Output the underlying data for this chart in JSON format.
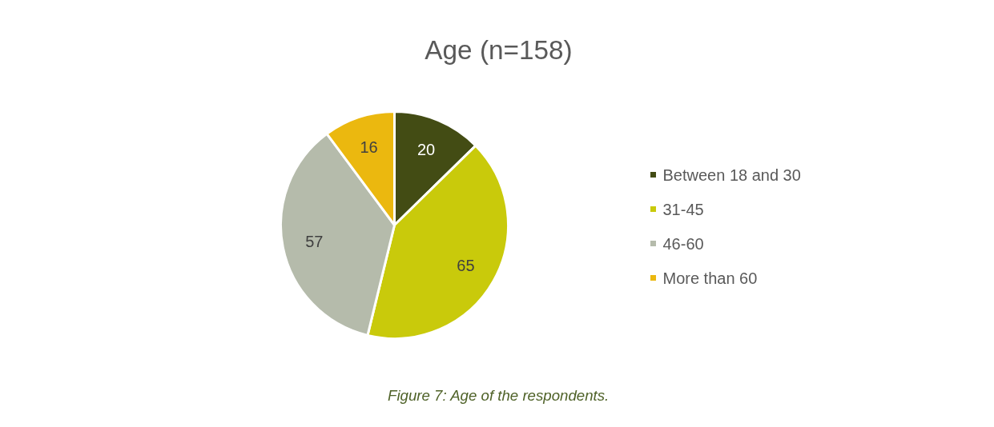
{
  "chart_data": {
    "type": "pie",
    "title": "Age (n=158)",
    "categories": [
      "Between 18 and 30",
      "31-45",
      "46-60",
      "More than 60"
    ],
    "values": [
      20,
      65,
      57,
      16
    ],
    "colors": [
      "#434c14",
      "#c9ca0b",
      "#b5bbab",
      "#ebb80f"
    ],
    "data_labels": true,
    "legend": "right",
    "annotations": [
      "Figure 7: Age of the respondents."
    ]
  }
}
